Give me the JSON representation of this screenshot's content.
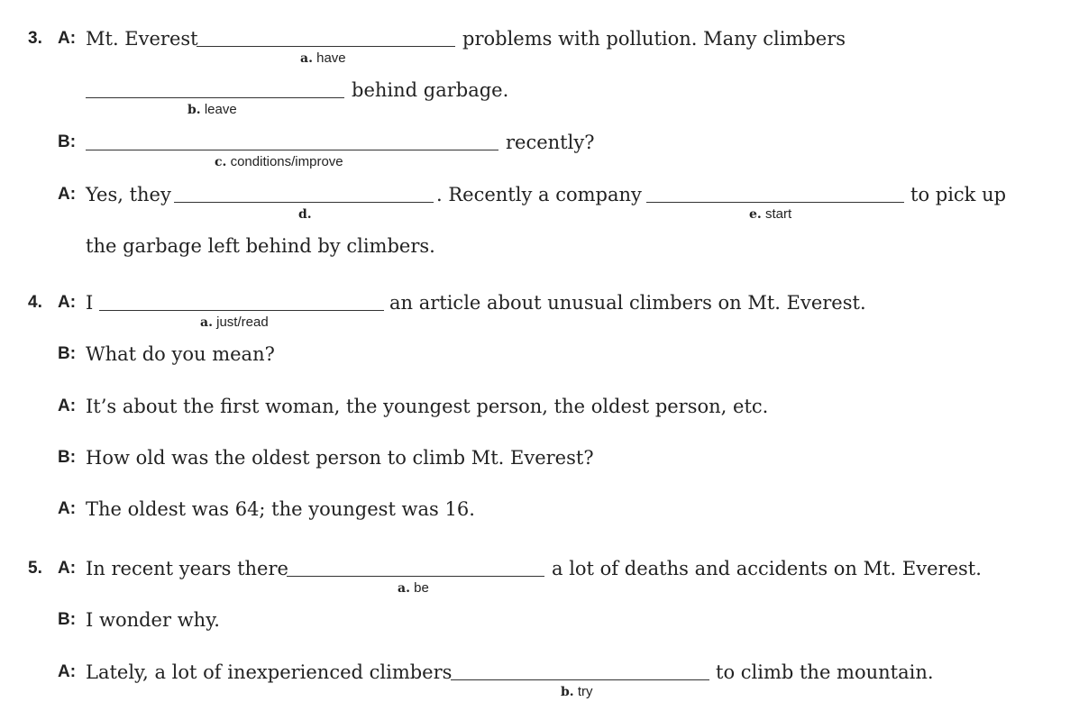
{
  "items": [
    {
      "number": "3.",
      "lines": [
        {
          "speaker": "A:",
          "before": "Mt. Everest",
          "hint_letter": "a.",
          "hint_word": "have",
          "after": "problems with pollution. Many climbers"
        },
        {
          "hint_letter": "b.",
          "hint_word": "leave",
          "after": "behind garbage."
        },
        {
          "speaker": "B:",
          "hint_letter": "c.",
          "hint_word": "conditions/improve",
          "after": "recently?"
        },
        {
          "speaker": "A:",
          "before": "Yes, they",
          "hint_letter": "d.",
          "middle": ". Recently a company",
          "hint2_letter": "e.",
          "hint2_word": "start",
          "after": "to pick up"
        },
        {
          "text": "the garbage left behind by climbers."
        }
      ]
    },
    {
      "number": "4.",
      "lines": [
        {
          "speaker": "A:",
          "before": "I",
          "hint_letter": "a.",
          "hint_word": "just/read",
          "after": "an article about unusual climbers on Mt. Everest."
        },
        {
          "speaker": "B:",
          "text": "What do you mean?"
        },
        {
          "speaker": "A:",
          "text": "It’s about the first woman, the youngest person, the oldest person, etc."
        },
        {
          "speaker": "B:",
          "text": "How old was the oldest person to climb Mt. Everest?"
        },
        {
          "speaker": "A:",
          "text": "The oldest was 64; the youngest was 16."
        }
      ]
    },
    {
      "number": "5.",
      "lines": [
        {
          "speaker": "A:",
          "before": "In recent years there",
          "hint_letter": "a.",
          "hint_word": "be",
          "after": "a lot of deaths and accidents on Mt. Everest."
        },
        {
          "speaker": "B:",
          "text": "I wonder why."
        },
        {
          "speaker": "A:",
          "before": "Lately, a lot of inexperienced climbers",
          "hint_letter": "b.",
          "hint_word": "try",
          "after": "to climb the mountain."
        }
      ]
    }
  ]
}
